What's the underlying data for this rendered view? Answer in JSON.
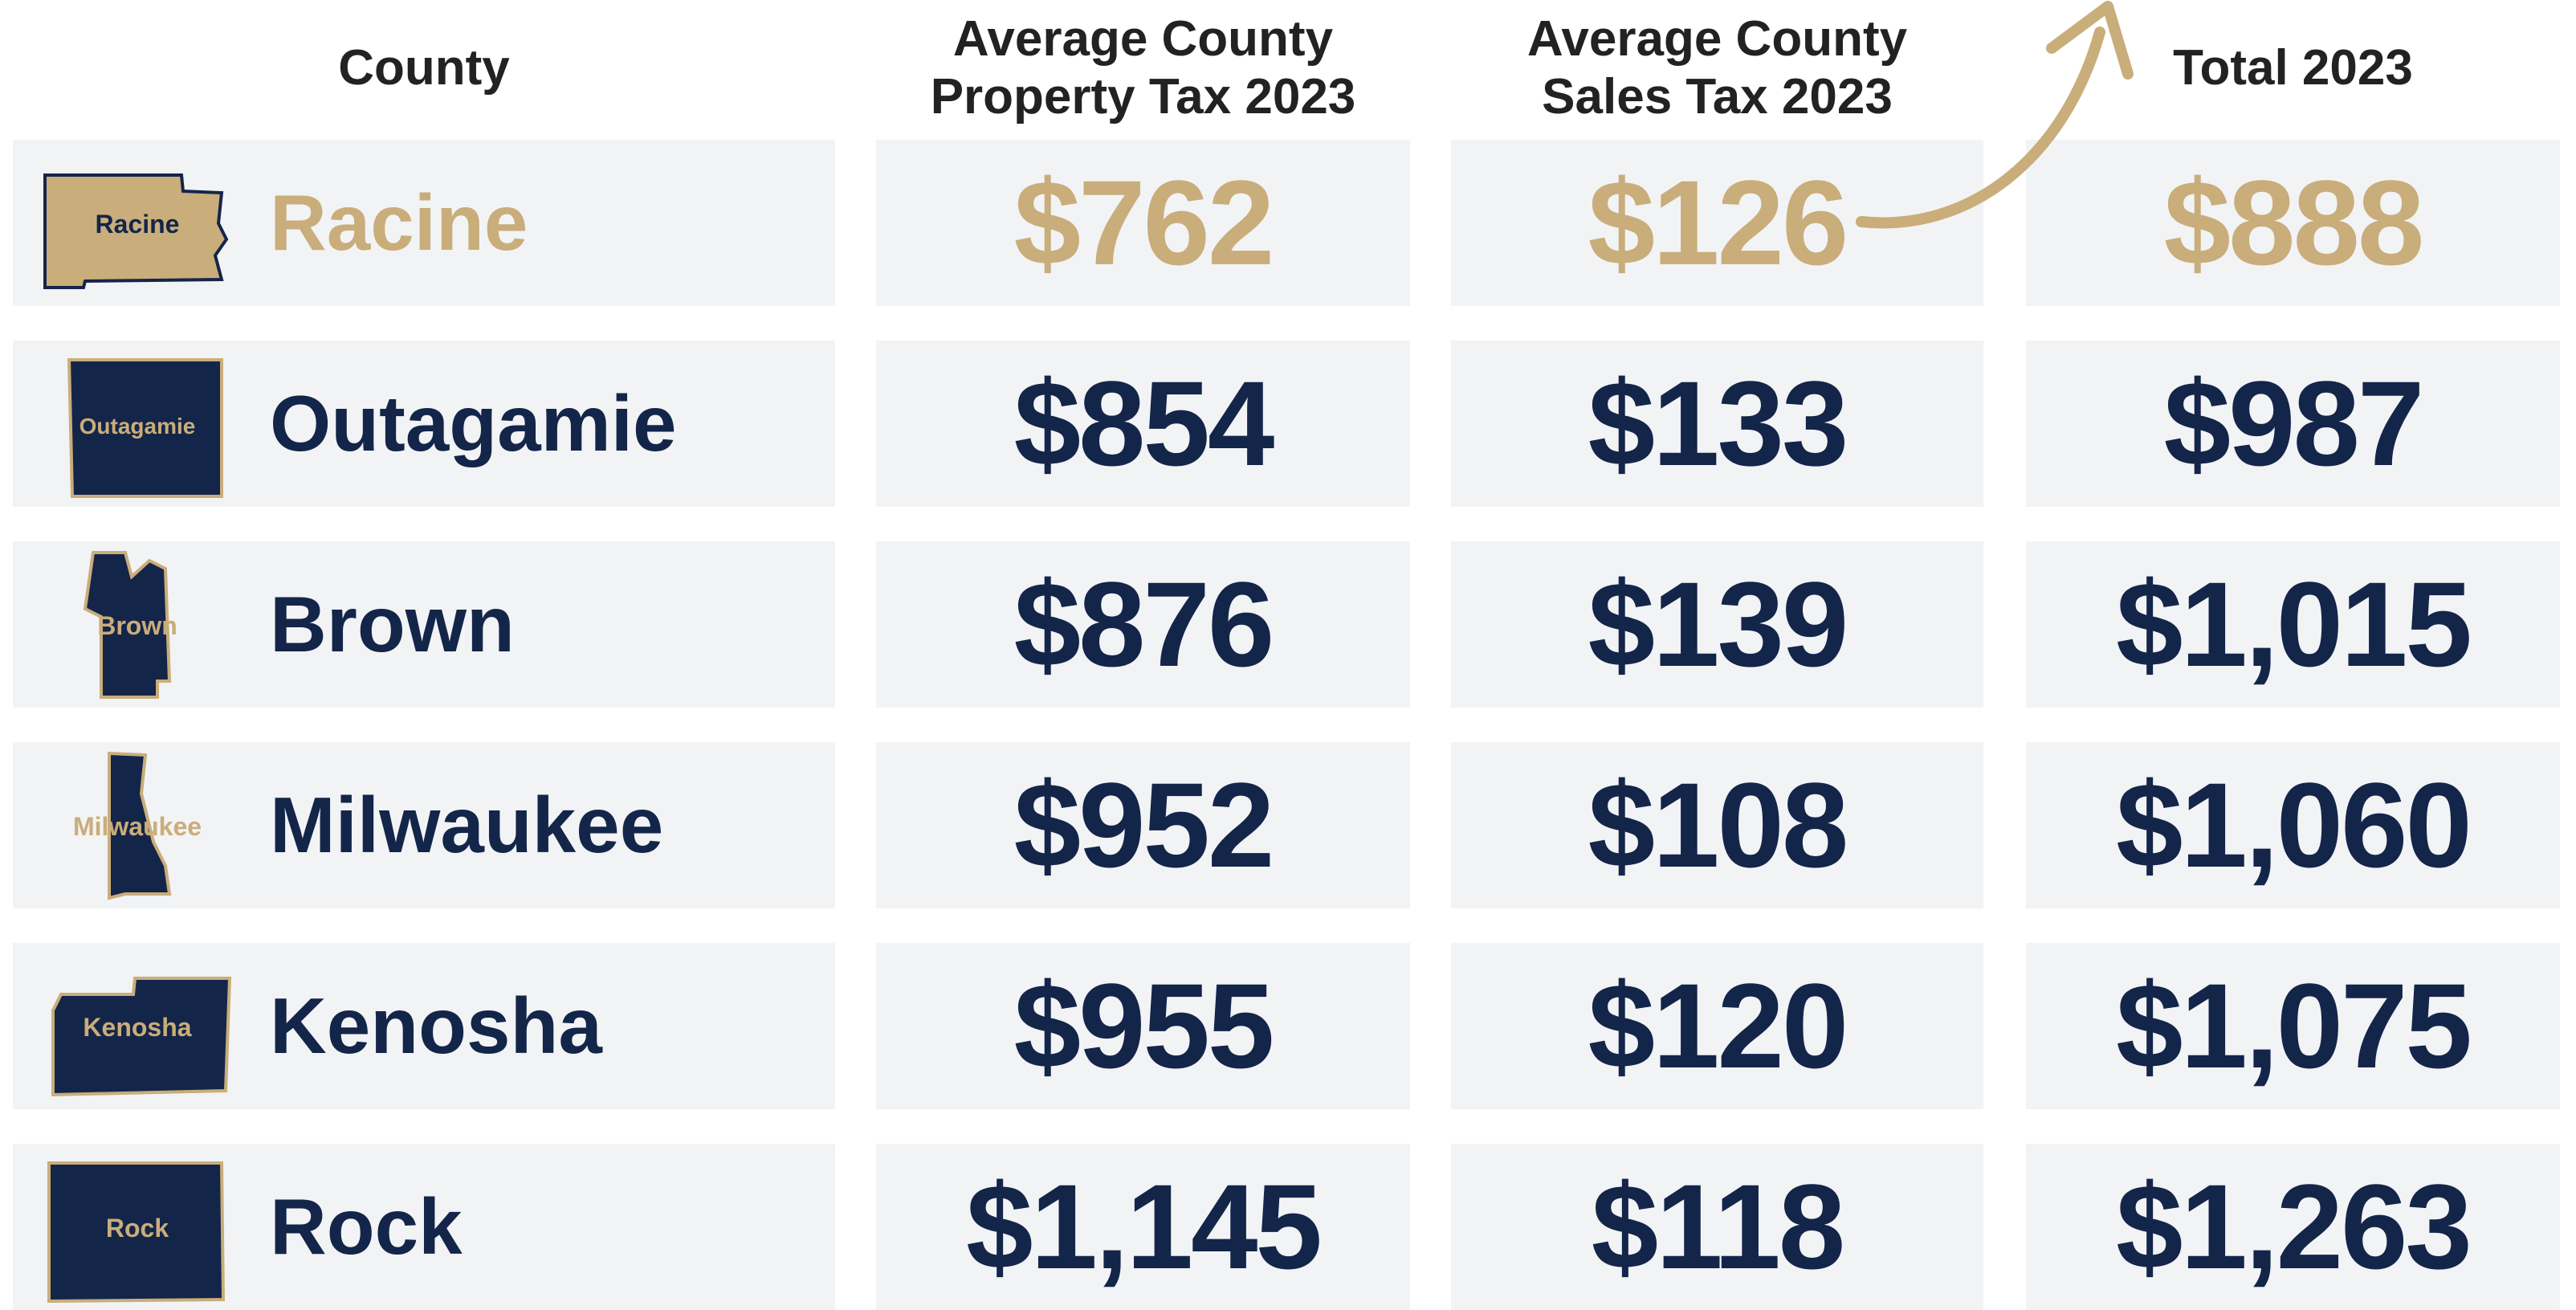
{
  "header": {
    "county": "County",
    "property_tax": [
      "Average County",
      "Property Tax 2023"
    ],
    "sales_tax": [
      "Average County",
      "Sales Tax 2023"
    ],
    "total": "Total 2023"
  },
  "table": {
    "highlight_row": 0,
    "rows": [
      {
        "icon_label": "Racine",
        "county": "Racine",
        "property_tax": "$762",
        "sales_tax": "$126",
        "total": "$888"
      },
      {
        "icon_label": "Outagamie",
        "county": "Outagamie",
        "property_tax": "$854",
        "sales_tax": "$133",
        "total": "$987"
      },
      {
        "icon_label": "Brown",
        "county": "Brown",
        "property_tax": "$876",
        "sales_tax": "$139",
        "total": "$1,015"
      },
      {
        "icon_label": "Milwaukee",
        "county": "Milwaukee",
        "property_tax": "$952",
        "sales_tax": "$108",
        "total": "$1,060"
      },
      {
        "icon_label": "Kenosha",
        "county": "Kenosha",
        "property_tax": "$955",
        "sales_tax": "$120",
        "total": "$1,075"
      },
      {
        "icon_label": "Rock",
        "county": "Rock",
        "property_tax": "$1,145",
        "sales_tax": "$118",
        "total": "$1,263"
      }
    ]
  }
}
